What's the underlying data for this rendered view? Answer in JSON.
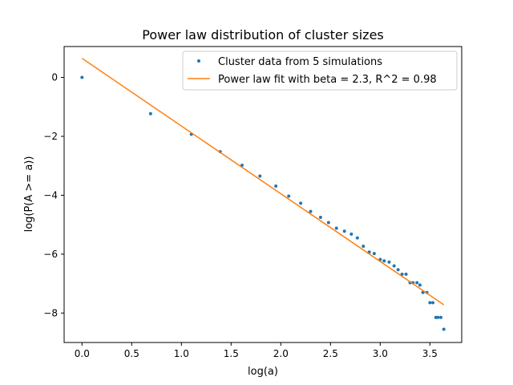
{
  "chart_data": {
    "type": "scatter",
    "title": "Power law distribution of cluster sizes",
    "xlabel": "log(a)",
    "ylabel": "log(P(A >= a))",
    "xlim": [
      -0.18,
      3.82
    ],
    "ylim": [
      -9.0,
      1.05
    ],
    "xticks": [
      0.0,
      0.5,
      1.0,
      1.5,
      2.0,
      2.5,
      3.0,
      3.5
    ],
    "xtick_labels": [
      "0.0",
      "0.5",
      "1.0",
      "1.5",
      "2.0",
      "2.5",
      "3.0",
      "3.5"
    ],
    "yticks": [
      0,
      -2,
      -4,
      -6,
      -8
    ],
    "ytick_labels": [
      "0",
      "−2",
      "−4",
      "−6",
      "−8"
    ],
    "grid": false,
    "legend_position": "top-right",
    "series": [
      {
        "name": "Cluster data from 5 simulations",
        "kind": "scatter",
        "color": "#1f77b4",
        "points": [
          [
            0.0,
            0.0
          ],
          [
            0.69,
            -1.23
          ],
          [
            1.1,
            -1.93
          ],
          [
            1.39,
            -2.52
          ],
          [
            1.61,
            -2.98
          ],
          [
            1.79,
            -3.35
          ],
          [
            1.95,
            -3.69
          ],
          [
            2.08,
            -4.03
          ],
          [
            2.2,
            -4.27
          ],
          [
            2.3,
            -4.55
          ],
          [
            2.4,
            -4.75
          ],
          [
            2.48,
            -4.93
          ],
          [
            2.56,
            -5.12
          ],
          [
            2.64,
            -5.22
          ],
          [
            2.71,
            -5.32
          ],
          [
            2.77,
            -5.45
          ],
          [
            2.83,
            -5.73
          ],
          [
            2.89,
            -5.93
          ],
          [
            2.94,
            -5.98
          ],
          [
            3.0,
            -6.18
          ],
          [
            3.04,
            -6.23
          ],
          [
            3.09,
            -6.27
          ],
          [
            3.14,
            -6.4
          ],
          [
            3.18,
            -6.53
          ],
          [
            3.22,
            -6.68
          ],
          [
            3.26,
            -6.68
          ],
          [
            3.3,
            -6.97
          ],
          [
            3.33,
            -6.97
          ],
          [
            3.37,
            -6.97
          ],
          [
            3.4,
            -7.05
          ],
          [
            3.43,
            -7.3
          ],
          [
            3.47,
            -7.3
          ],
          [
            3.5,
            -7.65
          ],
          [
            3.53,
            -7.65
          ],
          [
            3.56,
            -8.15
          ],
          [
            3.58,
            -8.15
          ],
          [
            3.61,
            -8.15
          ],
          [
            3.64,
            -8.55
          ]
        ]
      },
      {
        "name": "Power law fit with beta = 2.3, R^2 = 0.98",
        "kind": "line",
        "color": "#ff7f0e",
        "points": [
          [
            0.0,
            0.65
          ],
          [
            3.64,
            -7.72
          ]
        ]
      }
    ]
  }
}
